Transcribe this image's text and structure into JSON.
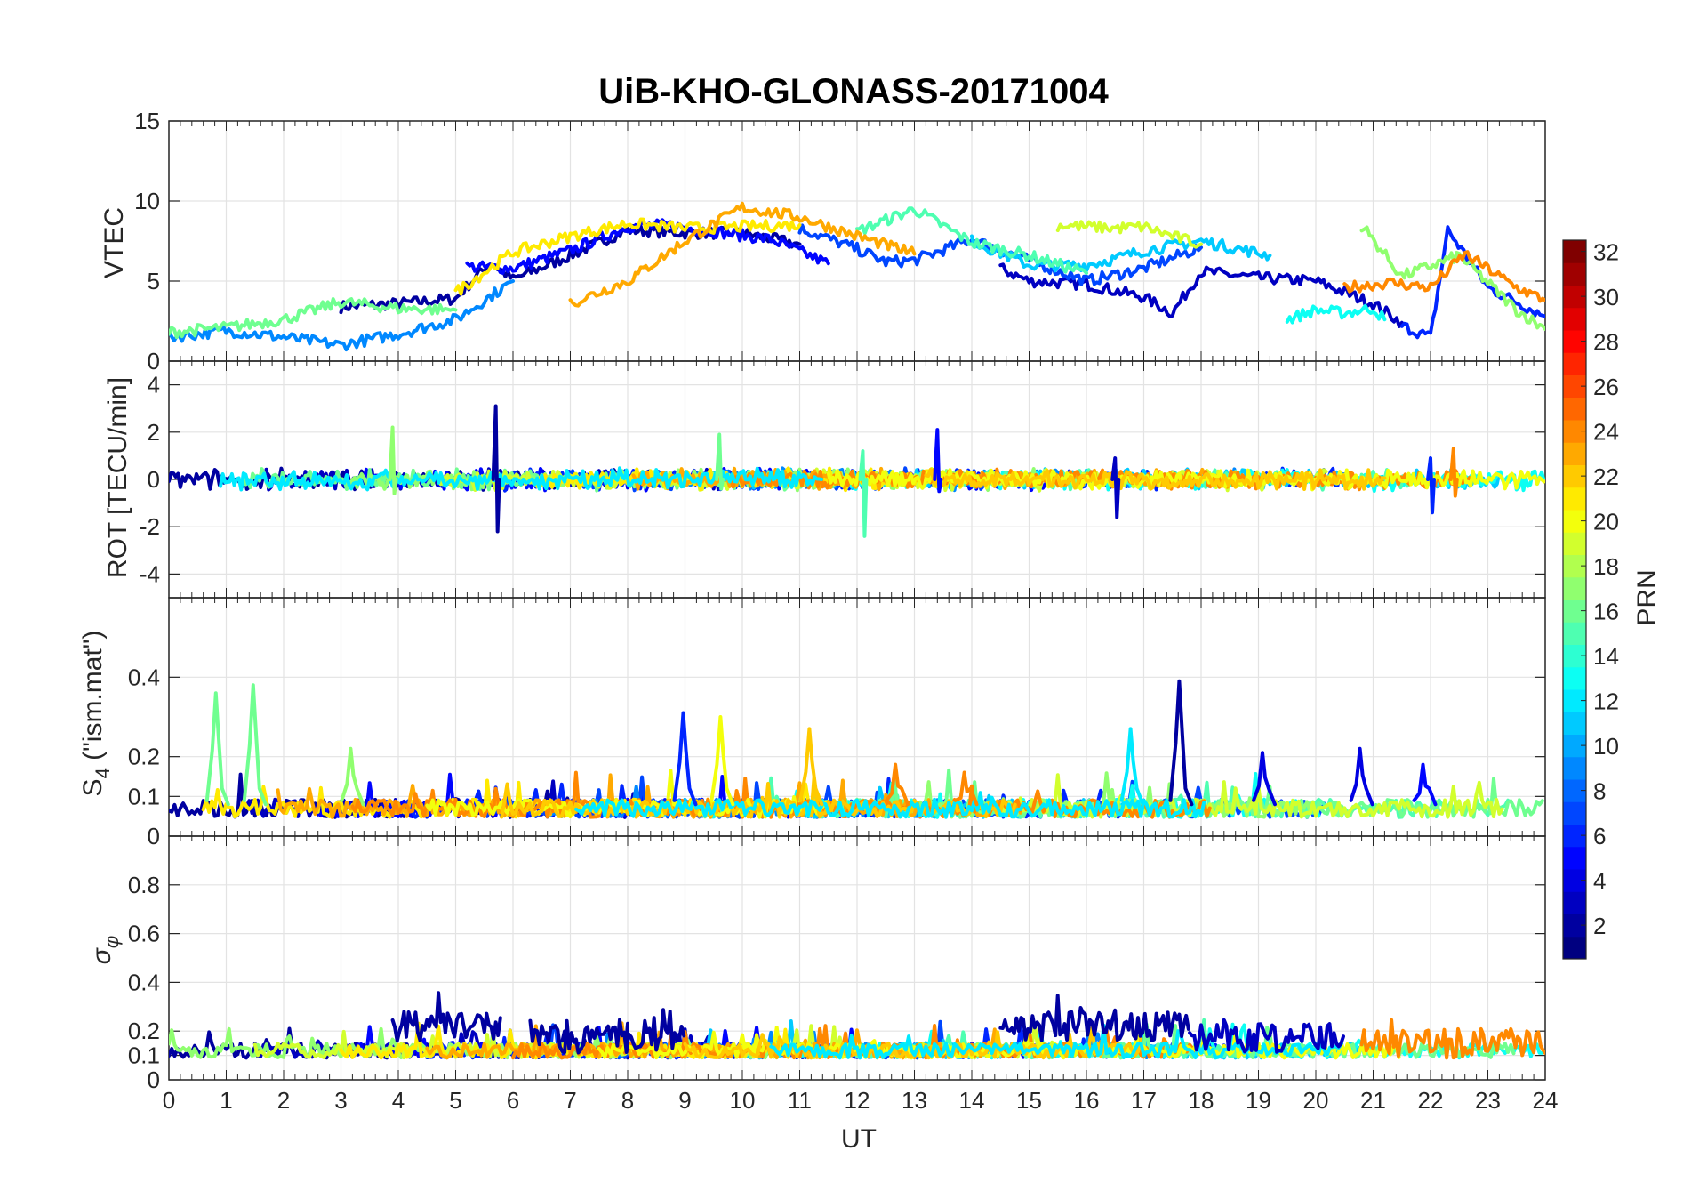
{
  "chart_data": [
    {
      "type": "line",
      "panel": "vtec",
      "title": "UiB-KHO-GLONASS-20171004",
      "ylabel": "VTEC",
      "xlabel": "",
      "xlim": [
        0,
        24
      ],
      "ylim": [
        0,
        15
      ],
      "yticks": [
        0,
        5,
        10,
        15
      ],
      "series": [
        {
          "name": "PRN 2",
          "prn": 2,
          "x": [
            3,
            4,
            5,
            5.6,
            6,
            7,
            8,
            9,
            10,
            11
          ],
          "values": [
            3.4,
            3.6,
            3.9,
            6.2,
            5.1,
            6.6,
            8.2,
            8.0,
            8.0,
            7.3
          ]
        },
        {
          "name": "PRN 3",
          "prn": 3,
          "x": [
            14.5,
            15,
            16,
            17,
            17.5,
            18,
            19,
            20,
            21,
            21.5
          ],
          "values": [
            5.8,
            5.0,
            4.8,
            4.0,
            3.0,
            5.6,
            5.2,
            5.0,
            3.6,
            2.4
          ]
        },
        {
          "name": "PRN 5",
          "prn": 5,
          "x": [
            5.2,
            6,
            7,
            8,
            8.7,
            9.5,
            10.5,
            11.5
          ],
          "values": [
            5.9,
            5.8,
            6.9,
            8.4,
            8.5,
            8.1,
            7.6,
            6.1
          ]
        },
        {
          "name": "PRN 6",
          "prn": 6,
          "x": [
            21.5,
            22,
            22.3,
            23,
            24
          ],
          "values": [
            2.2,
            1.5,
            8.2,
            4.6,
            2.8
          ]
        },
        {
          "name": "PRN 7",
          "prn": 7,
          "x": [
            11,
            12,
            12.5,
            13,
            14,
            15,
            16,
            17,
            18
          ],
          "values": [
            8.3,
            7.0,
            6.2,
            6.3,
            7.6,
            6.3,
            5.0,
            5.8,
            7.1
          ]
        },
        {
          "name": "PRN 9",
          "prn": 9,
          "x": [
            0,
            1,
            2,
            3,
            4,
            5,
            6
          ],
          "values": [
            1.5,
            1.9,
            1.5,
            1.0,
            1.7,
            2.6,
            5.0
          ]
        },
        {
          "name": "PRN 11",
          "prn": 11,
          "x": [
            14,
            15,
            16,
            16.5,
            17,
            18,
            19.2
          ],
          "values": [
            7.5,
            6.0,
            6.0,
            6.4,
            6.9,
            7.5,
            6.6
          ]
        },
        {
          "name": "PRN 13",
          "prn": 13,
          "x": [
            19.5,
            20,
            20.5,
            21,
            21.2
          ],
          "values": [
            2.6,
            3.2,
            3.0,
            3.3,
            2.6
          ]
        },
        {
          "name": "PRN 15",
          "prn": 15,
          "x": [
            12,
            13,
            14,
            15,
            16
          ],
          "values": [
            8.1,
            9.5,
            7.4,
            6.6,
            5.5
          ]
        },
        {
          "name": "PRN 16",
          "prn": 16,
          "x": [
            0,
            1,
            2,
            3,
            4,
            5
          ],
          "values": [
            1.8,
            2.1,
            2.6,
            3.7,
            3.3,
            3.2
          ]
        },
        {
          "name": "PRN 17",
          "prn": 17,
          "x": [
            20.8,
            21.5,
            22.5,
            23.5,
            24
          ],
          "values": [
            8.5,
            5.3,
            6.6,
            3.2,
            2.0
          ]
        },
        {
          "name": "PRN 19",
          "prn": 19,
          "x": [
            15.5,
            16.5,
            17,
            17.5,
            18
          ],
          "values": [
            8.5,
            8.3,
            8.4,
            7.8,
            7.3
          ]
        },
        {
          "name": "PRN 21",
          "prn": 21,
          "x": [
            5,
            6,
            7,
            8,
            9,
            10,
            11
          ],
          "values": [
            4.3,
            6.8,
            7.8,
            8.6,
            8.3,
            8.4,
            8.5
          ]
        },
        {
          "name": "PRN 23",
          "prn": 23,
          "x": [
            7,
            8,
            9,
            10,
            11,
            12,
            13
          ],
          "values": [
            3.6,
            5.0,
            7.5,
            9.6,
            9.0,
            7.8,
            6.7
          ]
        },
        {
          "name": "PRN 24",
          "prn": 24,
          "x": [
            20.5,
            21.3,
            22,
            22.6,
            23.5,
            24
          ],
          "values": [
            4.6,
            4.9,
            4.6,
            6.7,
            4.6,
            3.8
          ]
        }
      ]
    },
    {
      "type": "line",
      "panel": "rot",
      "ylabel": "ROT [TECU/min]",
      "xlim": [
        0,
        24
      ],
      "ylim": [
        -5,
        5
      ],
      "yticks": [
        -4,
        -2,
        0,
        2,
        4
      ],
      "spikes": [
        {
          "prn": 2,
          "x": 5.7,
          "values": [
            3.1,
            -2.2
          ]
        },
        {
          "prn": 17,
          "x": 3.9,
          "values": [
            2.2,
            -0.6
          ]
        },
        {
          "prn": 16,
          "x": 9.6,
          "values": [
            1.9,
            -0.4
          ]
        },
        {
          "prn": 15,
          "x": 12.1,
          "values": [
            1.2,
            -2.4
          ]
        },
        {
          "prn": 5,
          "x": 13.4,
          "values": [
            2.1,
            -0.5
          ]
        },
        {
          "prn": 3,
          "x": 16.5,
          "values": [
            0.9,
            -1.6
          ]
        },
        {
          "prn": 6,
          "x": 22.0,
          "values": [
            0.9,
            -1.4
          ]
        },
        {
          "prn": 24,
          "x": 22.4,
          "values": [
            1.3,
            -0.7
          ]
        }
      ],
      "noise_amplitude": 0.35
    },
    {
      "type": "line",
      "panel": "s4",
      "ylabel": "S4 (\"ism.mat\")",
      "xlim": [
        0,
        24
      ],
      "ylim": [
        0,
        0.6
      ],
      "yticks": [
        0,
        0.1,
        0.2,
        0.4
      ],
      "baseline": 0.07,
      "spikes": [
        {
          "prn": 16,
          "x": 0.85,
          "value": 0.36
        },
        {
          "prn": 16,
          "x": 1.5,
          "value": 0.38
        },
        {
          "prn": 17,
          "x": 3.2,
          "value": 0.22
        },
        {
          "prn": 6,
          "x": 9.0,
          "value": 0.31
        },
        {
          "prn": 20,
          "x": 9.65,
          "value": 0.3
        },
        {
          "prn": 22,
          "x": 11.2,
          "value": 0.27
        },
        {
          "prn": 2,
          "x": 17.65,
          "value": 0.39
        },
        {
          "prn": 12,
          "x": 16.8,
          "value": 0.27
        },
        {
          "prn": 4,
          "x": 19.1,
          "value": 0.21
        },
        {
          "prn": 4,
          "x": 20.8,
          "value": 0.22
        },
        {
          "prn": 5,
          "x": 21.9,
          "value": 0.18
        },
        {
          "prn": 24,
          "x": 12.7,
          "value": 0.18
        },
        {
          "prn": 24,
          "x": 13.9,
          "value": 0.16
        }
      ]
    },
    {
      "type": "line",
      "panel": "sigma_phi",
      "ylabel": "σφ",
      "xlabel": "UT",
      "xlim": [
        0,
        24
      ],
      "ylim": [
        0,
        1
      ],
      "yticks": [
        0,
        0.1,
        0.2,
        0.4,
        0.6,
        0.8
      ],
      "xticks": [
        0,
        1,
        2,
        3,
        4,
        5,
        6,
        7,
        8,
        9,
        10,
        11,
        12,
        13,
        14,
        15,
        16,
        17,
        18,
        19,
        20,
        21,
        22,
        23,
        24
      ],
      "baseline": 0.12,
      "elevated_windows": [
        {
          "prn": 2,
          "x_start": 3.9,
          "x_end": 5.8,
          "value": 0.22
        },
        {
          "prn": 2,
          "x_start": 6.3,
          "x_end": 9.0,
          "value": 0.17
        },
        {
          "prn": 2,
          "x_start": 14.5,
          "x_end": 17.8,
          "value": 0.22
        },
        {
          "prn": 3,
          "x_start": 17.8,
          "x_end": 20.5,
          "value": 0.17
        },
        {
          "prn": 24,
          "x_start": 20.8,
          "x_end": 24,
          "value": 0.15
        }
      ]
    }
  ],
  "colorbar": {
    "label": "PRN",
    "min": 1,
    "max": 32,
    "ticks": [
      2,
      4,
      6,
      8,
      10,
      12,
      14,
      16,
      18,
      20,
      22,
      24,
      26,
      28,
      30,
      32
    ],
    "colormap": "jet"
  },
  "labels": {
    "title": "UiB-KHO-GLONASS-20171004",
    "vtec": "VTEC",
    "rot": "ROT [TECU/min]",
    "s4_main": "S",
    "s4_sub": "4",
    "s4_rest": " (\"ism.mat\")",
    "sigma_main": "σ",
    "sigma_sub": "φ",
    "xlabel": "UT",
    "cbar": "PRN"
  }
}
